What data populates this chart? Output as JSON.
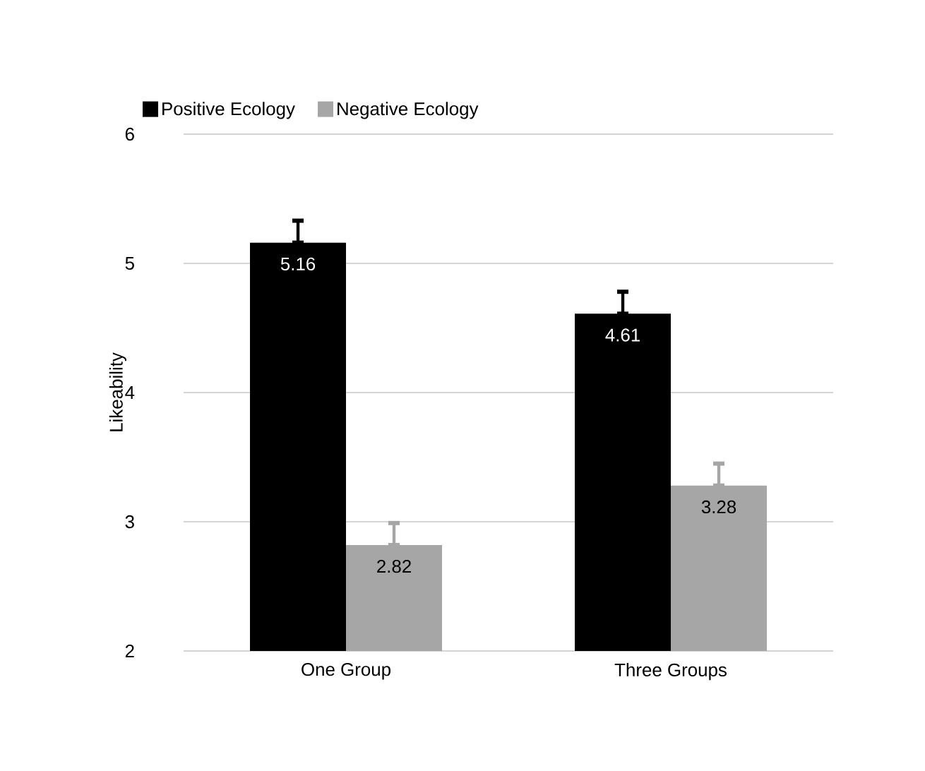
{
  "chart_data": {
    "type": "bar",
    "categories": [
      "One Group",
      "Three Groups"
    ],
    "ylabel": "Likeability",
    "ylim": [
      2,
      6
    ],
    "yticks": [
      2,
      3,
      4,
      5,
      6
    ],
    "grid": "y",
    "legend": "top left",
    "data_labels": true,
    "series": [
      {
        "name": "Positive Ecology",
        "color": "#000000",
        "values": [
          5.16,
          4.61
        ],
        "errors": [
          [
            5.16,
            5.33
          ],
          [
            4.61,
            4.78
          ]
        ]
      },
      {
        "name": "Negative Ecology",
        "color": "#a6a6a6",
        "values": [
          2.82,
          3.28
        ],
        "errors": [
          [
            2.82,
            2.99
          ],
          [
            3.28,
            3.45
          ]
        ]
      }
    ]
  }
}
